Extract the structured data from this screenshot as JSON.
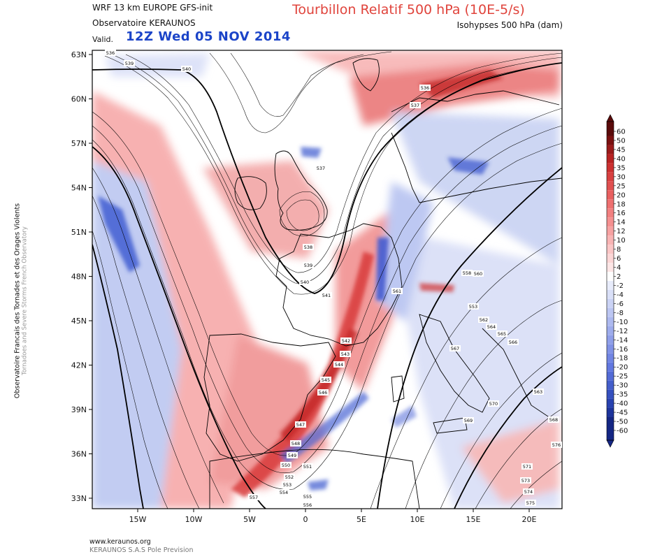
{
  "header": {
    "model": "WRF 13 km EUROPE  GFS-init",
    "org": "Observatoire KERAUNOS",
    "valid_label": "Valid.",
    "valid_time": "12Z Wed 05 NOV 2014",
    "title": "Tourbillon Relatif 500 hPa (10E-5/s)",
    "subtitle": "Isohypses 500 hPa (dam)"
  },
  "side": {
    "line1": "Observatoire Francais des Tornades et des Orages Violents",
    "line2": "Tornadoes and Severe Storms French Observatory"
  },
  "footer": {
    "url": "www.keraunos.org",
    "company": "KERAUNOS S.A.S Pole Prevision"
  },
  "map": {
    "lat_ticks": [
      "63N",
      "60N",
      "57N",
      "54N",
      "51N",
      "48N",
      "45N",
      "42N",
      "39N",
      "36N",
      "33N"
    ],
    "lon_ticks": [
      "15W",
      "10W",
      "5W",
      "0",
      "5E",
      "10E",
      "15E",
      "20E"
    ]
  },
  "colorbar": {
    "levels": [
      "60",
      "50",
      "45",
      "40",
      "35",
      "30",
      "25",
      "20",
      "18",
      "16",
      "14",
      "12",
      "10",
      "8",
      "6",
      "4",
      "2",
      "-2",
      "-4",
      "-6",
      "-8",
      "-10",
      "-12",
      "-14",
      "-16",
      "-18",
      "-20",
      "-25",
      "-30",
      "-35",
      "-40",
      "-45",
      "-50",
      "-60"
    ],
    "colors": [
      "#5a0a0a",
      "#7a1010",
      "#9a1a1a",
      "#b82222",
      "#cc3030",
      "#d84040",
      "#e05050",
      "#e86060",
      "#ee7070",
      "#f28080",
      "#f59090",
      "#f7a2a2",
      "#f9b4b4",
      "#fbc6c6",
      "#fcd6d6",
      "#fde6e6",
      "#ffffff",
      "#e8ecfb",
      "#dae0f8",
      "#cbd3f5",
      "#bcc6f2",
      "#adb9ef",
      "#9eacec",
      "#8f9fe9",
      "#8092e6",
      "#7185e3",
      "#6278e0",
      "#536bd6",
      "#445ecb",
      "#3550bf",
      "#2842b0",
      "#1d349c",
      "#142684"
    ]
  },
  "contour_labels": [
    "536",
    "539",
    "540",
    "536",
    "537",
    "537",
    "538",
    "539",
    "540",
    "541",
    "542",
    "543",
    "544",
    "545",
    "546",
    "547",
    "548",
    "549",
    "550",
    "551",
    "552",
    "553",
    "554",
    "555",
    "556",
    "557",
    "558",
    "560",
    "561",
    "553",
    "562",
    "564",
    "565",
    "566",
    "567",
    "563",
    "570",
    "569",
    "568",
    "571",
    "573",
    "574",
    "575",
    "576",
    "57"
  ],
  "colors": {
    "positive": "#e0443c",
    "negative": "#3a56d0",
    "title": "#e0443c",
    "valid": "#1b44c8"
  }
}
